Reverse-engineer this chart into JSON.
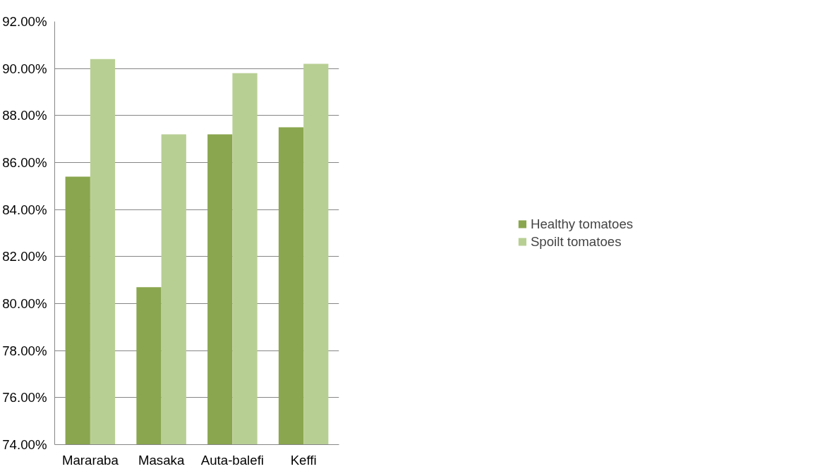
{
  "chart_data": {
    "type": "bar",
    "categories": [
      "Mararaba",
      "Masaka",
      "Auta-balefi",
      "Keffi"
    ],
    "series": [
      {
        "name": "Healthy tomatoes",
        "color": "#8aa64e",
        "values": [
          85.4,
          80.7,
          87.2,
          87.5
        ]
      },
      {
        "name": "Spoilt tomatoes",
        "color": "#b8cf94",
        "values": [
          90.4,
          87.2,
          89.8,
          90.2
        ]
      }
    ],
    "ylim": [
      74,
      92
    ],
    "yticks": [
      {
        "value": 74,
        "label": "74.00%"
      },
      {
        "value": 76,
        "label": "76.00%"
      },
      {
        "value": 78,
        "label": "78.00%"
      },
      {
        "value": 80,
        "label": "80.00%"
      },
      {
        "value": 82,
        "label": "82.00%"
      },
      {
        "value": 84,
        "label": "84.00%"
      },
      {
        "value": 86,
        "label": "86.00%"
      },
      {
        "value": 88,
        "label": "88.00%"
      },
      {
        "value": 90,
        "label": "90.00%"
      },
      {
        "value": 92,
        "label": "92.00%"
      }
    ],
    "grid": "y",
    "legend": "right"
  }
}
